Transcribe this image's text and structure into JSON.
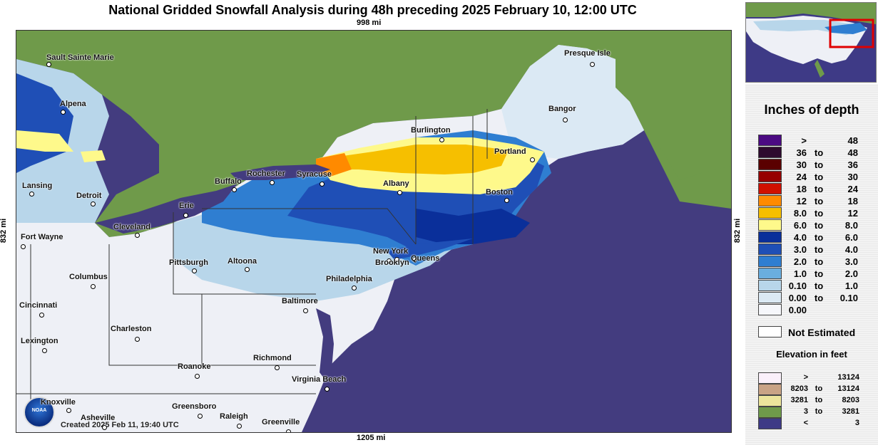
{
  "title": "National Gridded Snowfall Analysis during 48h preceding 2025 February 10, 12:00 UTC",
  "dimensions": {
    "top": "998 mi",
    "bottom": "1205 mi",
    "left": "832 mi",
    "right": "832 mi"
  },
  "created": "Created 2025 Feb 11, 19:40 UTC",
  "logo_text": "NOAA",
  "cities": [
    {
      "name": "Sault Sainte Marie"
    },
    {
      "name": "Presque Isle"
    },
    {
      "name": "Alpena"
    },
    {
      "name": "Bangor"
    },
    {
      "name": "Burlington"
    },
    {
      "name": "Portland"
    },
    {
      "name": "Lansing"
    },
    {
      "name": "Rochester"
    },
    {
      "name": "Syracuse"
    },
    {
      "name": "Buffalo"
    },
    {
      "name": "Detroit"
    },
    {
      "name": "Albany"
    },
    {
      "name": "Boston"
    },
    {
      "name": "Erie"
    },
    {
      "name": "Cleveland"
    },
    {
      "name": "Fort Wayne"
    },
    {
      "name": "New York"
    },
    {
      "name": "Queens"
    },
    {
      "name": "Pittsburgh"
    },
    {
      "name": "Altoona"
    },
    {
      "name": "Brooklyn"
    },
    {
      "name": "Columbus"
    },
    {
      "name": "Philadelphia"
    },
    {
      "name": "Baltimore"
    },
    {
      "name": "Cincinnati"
    },
    {
      "name": "Charleston"
    },
    {
      "name": "Lexington"
    },
    {
      "name": "Richmond"
    },
    {
      "name": "Roanoke"
    },
    {
      "name": "Virginia Beach"
    },
    {
      "name": "Knoxville"
    },
    {
      "name": "Greensboro"
    },
    {
      "name": "Asheville"
    },
    {
      "name": "Raleigh"
    },
    {
      "name": "Greenville"
    }
  ],
  "legend": {
    "title": "Inches of depth",
    "to_word": "to",
    "snow_bins": [
      {
        "low": ">",
        "high": "48",
        "color": "#4b0a82"
      },
      {
        "low": "36",
        "high": "48",
        "color": "#2e0a2e"
      },
      {
        "low": "30",
        "high": "36",
        "color": "#5a0000"
      },
      {
        "low": "24",
        "high": "30",
        "color": "#960000"
      },
      {
        "low": "18",
        "high": "24",
        "color": "#d01000"
      },
      {
        "low": "12",
        "high": "18",
        "color": "#ff8a00"
      },
      {
        "low": "8.0",
        "high": "12",
        "color": "#f6bf00"
      },
      {
        "low": "6.0",
        "high": "8.0",
        "color": "#fef98b"
      },
      {
        "low": "4.0",
        "high": "6.0",
        "color": "#0a2f9a"
      },
      {
        "low": "3.0",
        "high": "4.0",
        "color": "#1f4fb6"
      },
      {
        "low": "2.0",
        "high": "3.0",
        "color": "#2f7ed1"
      },
      {
        "low": "1.0",
        "high": "2.0",
        "color": "#6aaedf"
      },
      {
        "low": "0.10",
        "high": "1.0",
        "color": "#b8d6ea"
      },
      {
        "low": "0.00",
        "high": "0.10",
        "color": "#dbe9f4"
      },
      {
        "low": "0.00",
        "high": "",
        "color": "#f6f7fb"
      }
    ],
    "not_estimated": "Not Estimated",
    "elevation_title": "Elevation in feet",
    "elevation_bins": [
      {
        "low": ">",
        "high": "13124",
        "color": "#faf0fa"
      },
      {
        "low": "8203",
        "high": "13124",
        "color": "#c9a386"
      },
      {
        "low": "3281",
        "high": "8203",
        "color": "#ece49c"
      },
      {
        "low": "3",
        "high": "3281",
        "color": "#6f9a4a"
      },
      {
        "low": "<",
        "high": "3",
        "color": "#3e3a86"
      }
    ]
  }
}
